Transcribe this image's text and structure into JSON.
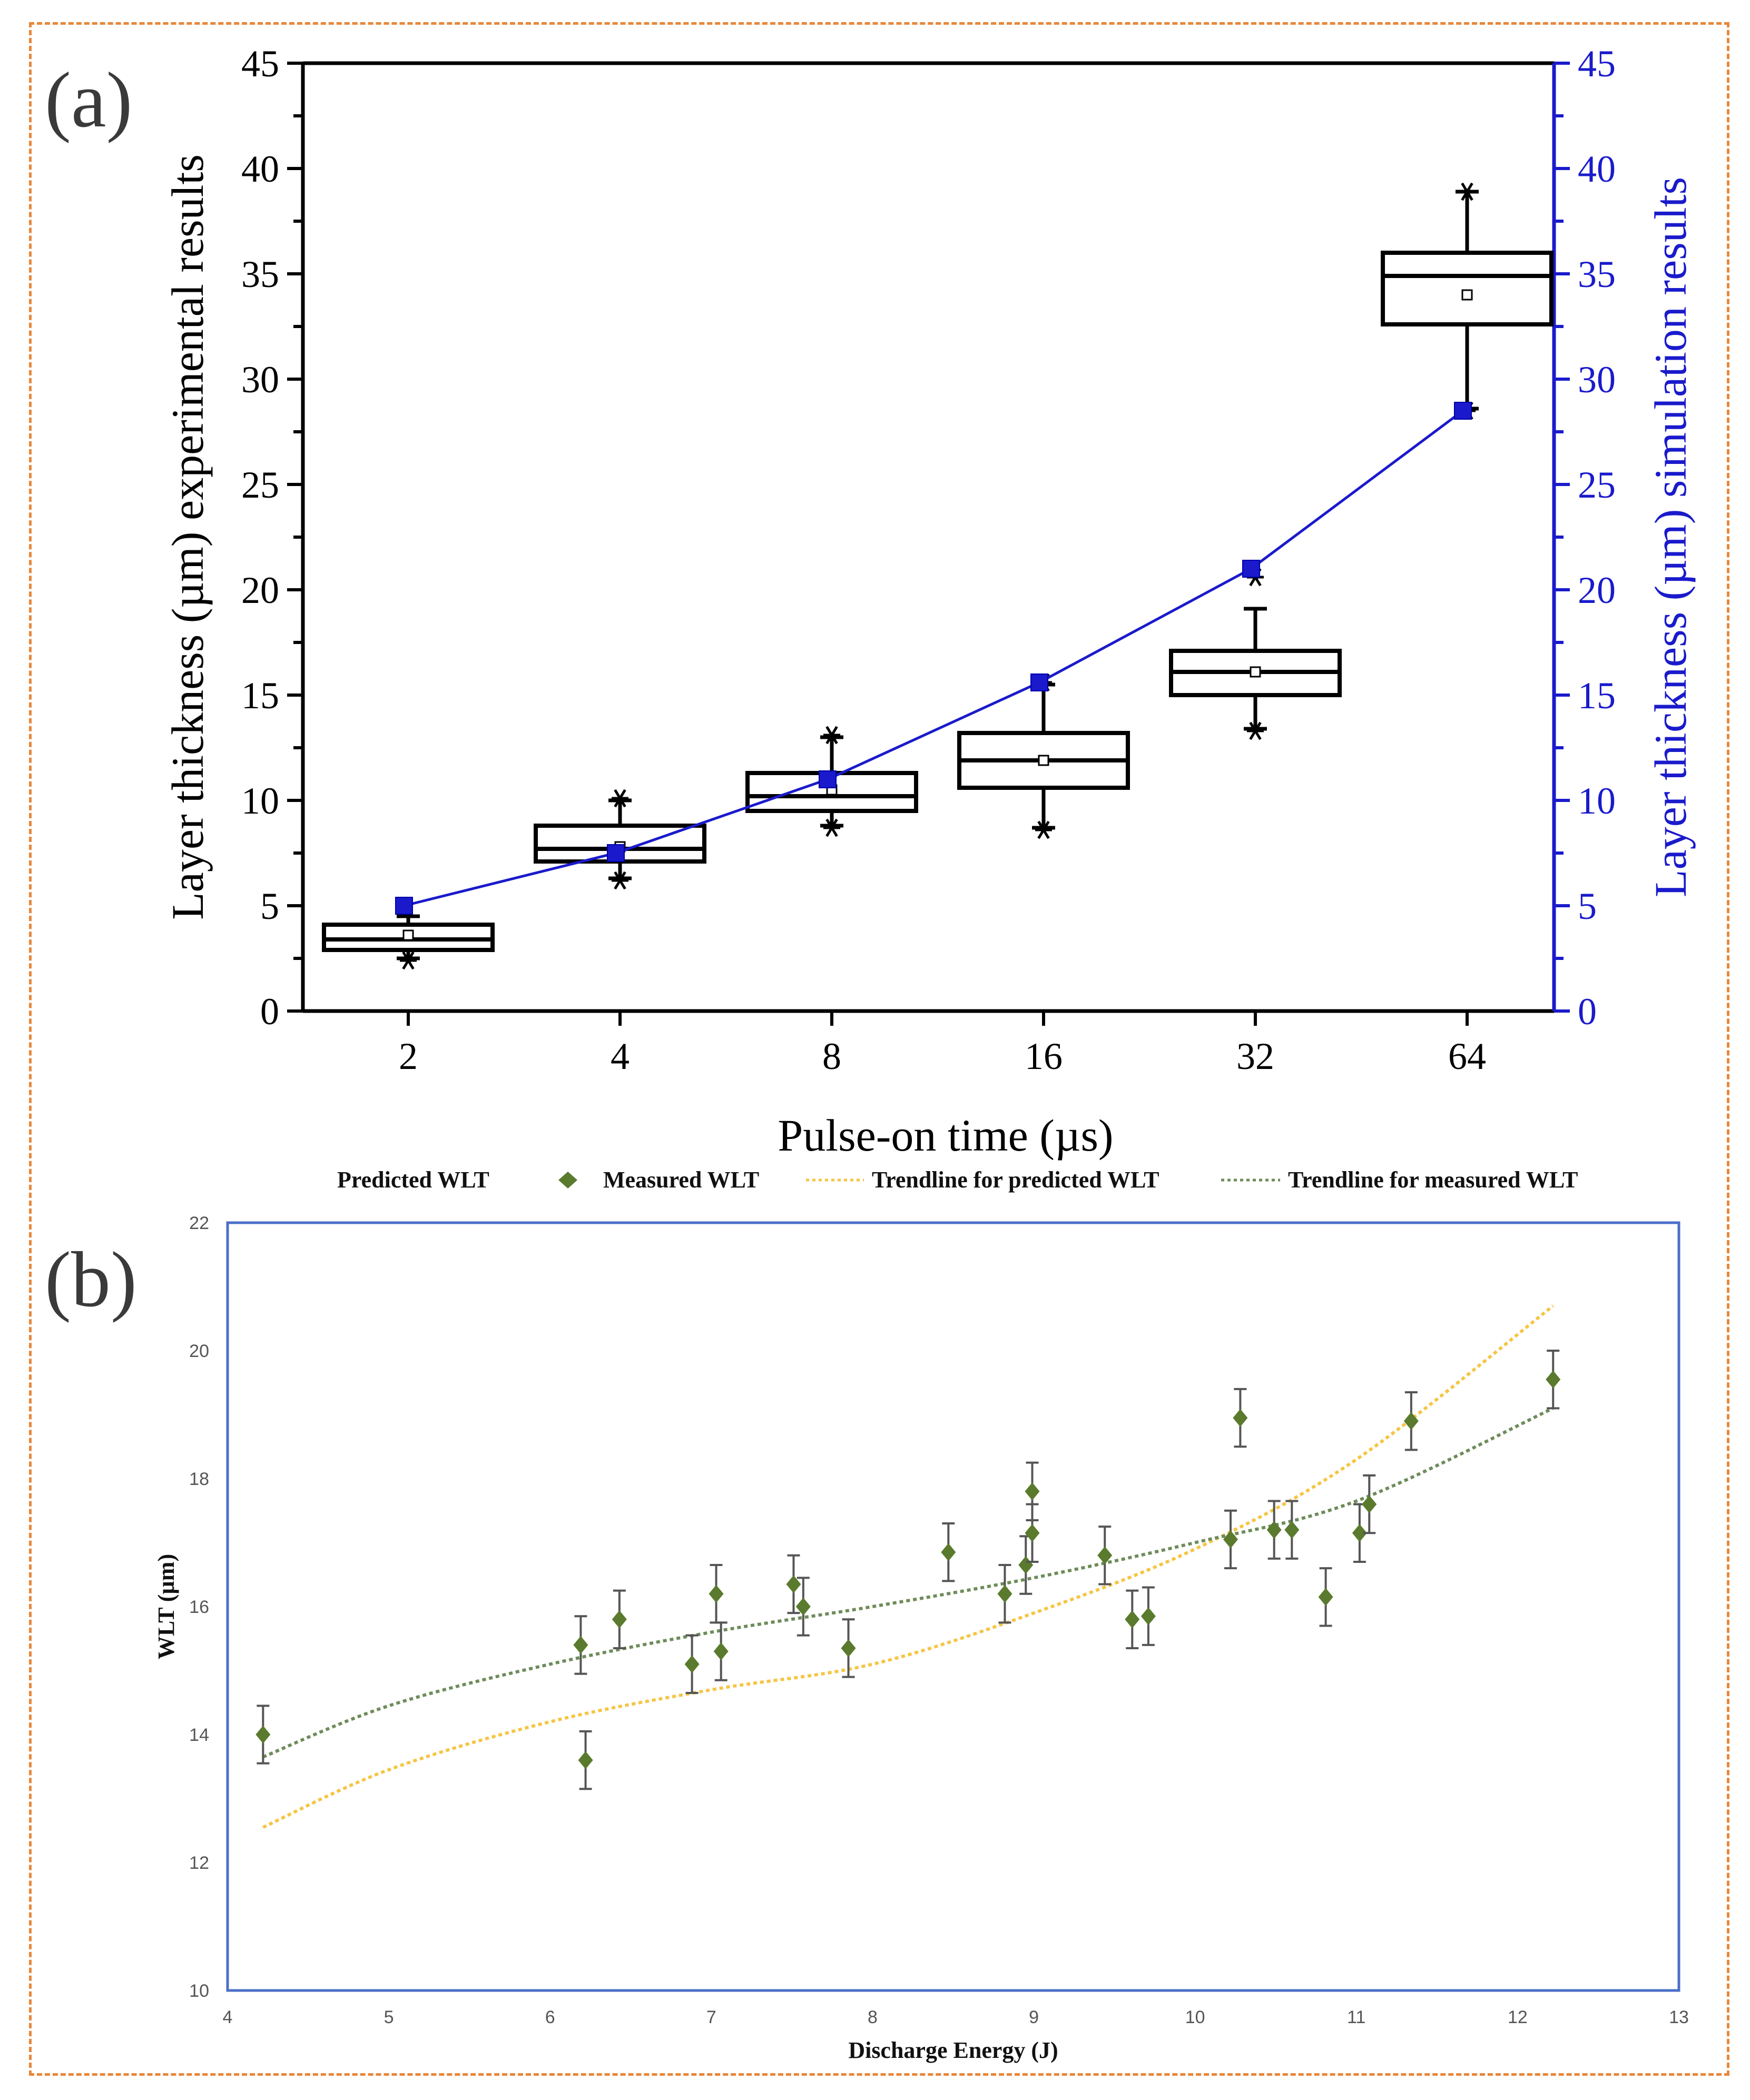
{
  "chart_data": [
    {
      "panel": "(a)",
      "type": "box",
      "xlabel": "Pulse-on time (µs)",
      "ylabel_left": "Layer thickness (µm) experimental results",
      "ylabel_right": "Layer thickness (µm) simulation results",
      "categories": [
        "2",
        "4",
        "8",
        "16",
        "32",
        "64"
      ],
      "ylim": [
        0,
        45
      ],
      "yticks": [
        "0",
        "5",
        "10",
        "15",
        "20",
        "25",
        "30",
        "35",
        "40",
        "45"
      ],
      "boxes": [
        {
          "q1": 2.9,
          "median": 3.4,
          "q3": 4.1,
          "whisker_low": 2.5,
          "whisker_high": 4.5,
          "mean": 3.6,
          "outliers": [
            2.4
          ]
        },
        {
          "q1": 7.1,
          "median": 7.7,
          "q3": 8.8,
          "whisker_low": 6.3,
          "whisker_high": 10.0,
          "mean": 7.8,
          "outliers": [
            6.2,
            10.1
          ]
        },
        {
          "q1": 9.5,
          "median": 10.2,
          "q3": 11.3,
          "whisker_low": 8.8,
          "whisker_high": 13.0,
          "mean": 10.5,
          "outliers": [
            8.7,
            13.1
          ]
        },
        {
          "q1": 10.6,
          "median": 11.9,
          "q3": 13.2,
          "whisker_low": 8.7,
          "whisker_high": 15.5,
          "mean": 11.9,
          "outliers": [
            8.6,
            15.6
          ]
        },
        {
          "q1": 15.0,
          "median": 16.1,
          "q3": 17.1,
          "whisker_low": 13.4,
          "whisker_high": 19.1,
          "mean": 16.1,
          "outliers": [
            13.3,
            20.6
          ]
        },
        {
          "q1": 32.6,
          "median": 34.9,
          "q3": 36.0,
          "whisker_low": 28.6,
          "whisker_high": 38.9,
          "mean": 34.0,
          "outliers": [
            28.5,
            38.9
          ]
        }
      ],
      "simulation": {
        "values": [
          5.0,
          7.5,
          11.0,
          15.6,
          21.0,
          28.5
        ],
        "color": "#1a1acc"
      }
    },
    {
      "panel": "(b)",
      "type": "scatter",
      "xlabel": "Discharge Energy (J)",
      "ylabel": "WLT (µm)",
      "xlim": [
        4,
        13
      ],
      "ylim": [
        10,
        22
      ],
      "xticks": [
        "4",
        "5",
        "6",
        "7",
        "8",
        "9",
        "10",
        "11",
        "12",
        "13"
      ],
      "yticks": [
        "10",
        "12",
        "14",
        "16",
        "18",
        "20",
        "22"
      ],
      "legend": [
        {
          "label": "Predicted WLT"
        },
        {
          "label": "Measured WLT",
          "color": "#5a7a2e"
        },
        {
          "label": "Trendline for predicted WLT",
          "color": "#f5c542"
        },
        {
          "label": "Trendline for measured WLT",
          "color": "#6e8c5a"
        }
      ],
      "measured": {
        "error": 0.45,
        "points": [
          [
            4.22,
            14.0
          ],
          [
            6.19,
            15.4
          ],
          [
            6.22,
            13.6
          ],
          [
            6.43,
            15.8
          ],
          [
            6.88,
            15.1
          ],
          [
            7.03,
            16.2
          ],
          [
            7.06,
            15.3
          ],
          [
            7.51,
            16.35
          ],
          [
            7.57,
            16.0
          ],
          [
            7.85,
            15.35
          ],
          [
            8.47,
            16.85
          ],
          [
            8.82,
            16.2
          ],
          [
            8.95,
            16.65
          ],
          [
            8.99,
            17.8
          ],
          [
            8.99,
            17.15
          ],
          [
            9.44,
            16.8
          ],
          [
            9.61,
            15.8
          ],
          [
            9.71,
            15.85
          ],
          [
            10.22,
            17.05
          ],
          [
            10.28,
            18.95
          ],
          [
            10.49,
            17.2
          ],
          [
            10.6,
            17.2
          ],
          [
            10.81,
            16.15
          ],
          [
            11.02,
            17.15
          ],
          [
            11.08,
            17.6
          ],
          [
            11.34,
            18.9
          ],
          [
            12.22,
            19.55
          ]
        ]
      },
      "trend_predicted": [
        [
          4.22,
          12.55
        ],
        [
          5,
          13.45
        ],
        [
          6,
          14.2
        ],
        [
          7,
          14.7
        ],
        [
          8,
          15.1
        ],
        [
          9,
          15.9
        ],
        [
          10,
          16.9
        ],
        [
          11,
          18.3
        ],
        [
          12.22,
          20.7
        ]
      ],
      "trend_measured": [
        [
          4.22,
          13.65
        ],
        [
          5,
          14.45
        ],
        [
          6,
          15.1
        ],
        [
          7,
          15.6
        ],
        [
          8,
          16.0
        ],
        [
          9,
          16.45
        ],
        [
          10,
          17.0
        ],
        [
          11,
          17.65
        ],
        [
          12.22,
          19.1
        ]
      ]
    }
  ],
  "panel_labels": [
    "(a)",
    "(b)"
  ]
}
